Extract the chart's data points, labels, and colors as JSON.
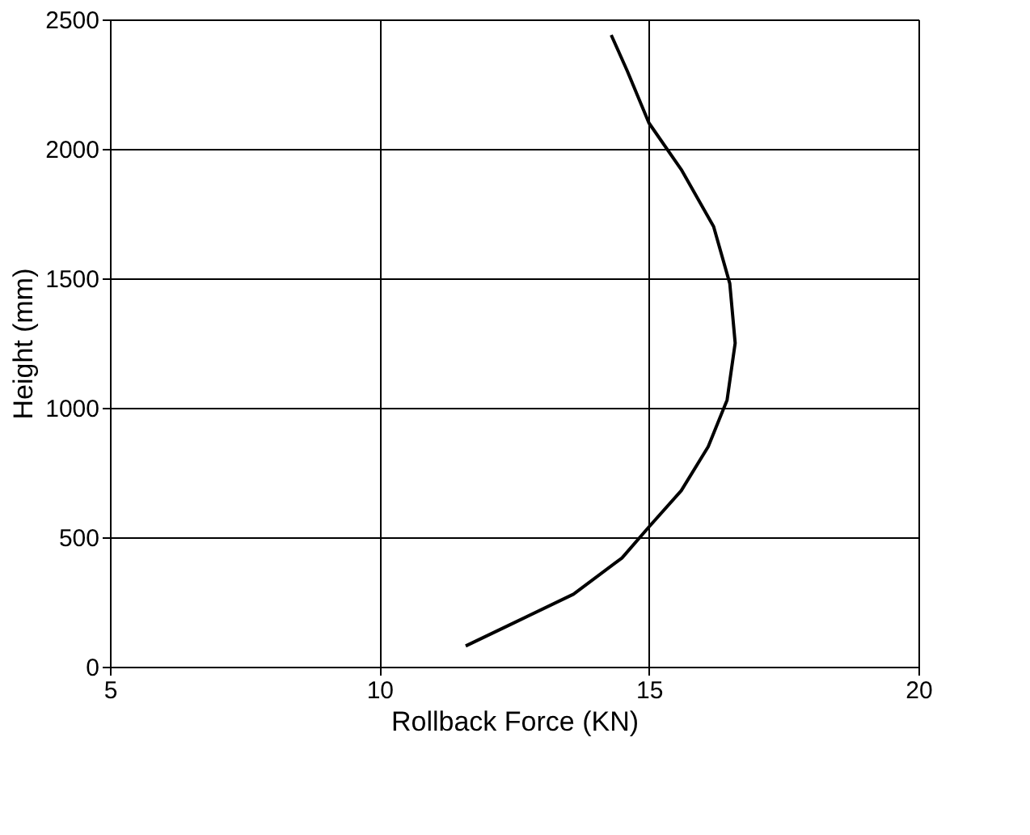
{
  "chart_data": {
    "type": "line",
    "xlabel": "Rollback Force (KN)",
    "ylabel": "Height (mm)",
    "x": [
      11.6,
      12.5,
      13.6,
      14.5,
      15.0,
      15.6,
      16.1,
      16.45,
      16.6,
      16.5,
      16.2,
      15.6,
      15.0,
      14.6,
      14.3
    ],
    "series": [
      {
        "color": "#000000",
        "values": [
          80,
          170,
          280,
          420,
          540,
          680,
          850,
          1030,
          1250,
          1480,
          1700,
          1920,
          2100,
          2300,
          2440
        ]
      }
    ],
    "xlim": [
      5,
      20
    ],
    "xticks": [
      5,
      10,
      15,
      20
    ],
    "ylim": [
      0,
      2500
    ],
    "yticks": [
      0,
      500,
      1000,
      1500,
      2000,
      2500
    ],
    "grid": true,
    "marker": "none",
    "line_style": "solid"
  }
}
